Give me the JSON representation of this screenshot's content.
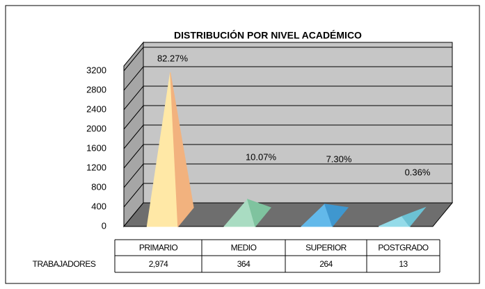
{
  "chart_data": {
    "type": "pyramid3d",
    "title": "DISTRIBUCIÓN POR NIVEL ACADÉMICO",
    "categories": [
      "PRIMARIO",
      "MEDIO",
      "SUPERIOR",
      "POSTGRADO"
    ],
    "series": [
      {
        "name": "TRABAJADORES",
        "values": [
          2974,
          364,
          264,
          13
        ],
        "value_labels": [
          "2,974",
          "364",
          "264",
          "13"
        ]
      }
    ],
    "percentages": [
      82.27,
      10.07,
      7.3,
      0.36
    ],
    "percentage_labels": [
      "82.27%",
      "10.07%",
      "7.30%",
      "0.36%"
    ],
    "colors": [
      "#ffe8a6",
      "#a9dcc2",
      "#62b9ea",
      "#94dbe9"
    ],
    "side_colors": [
      "#f2b27e",
      "#7fc39f",
      "#3f97cf",
      "#6cc2d4"
    ],
    "ylim": [
      0,
      3300
    ],
    "yticks": [
      0,
      400,
      800,
      1200,
      1600,
      2000,
      2400,
      2800,
      3200
    ],
    "grid": true
  }
}
